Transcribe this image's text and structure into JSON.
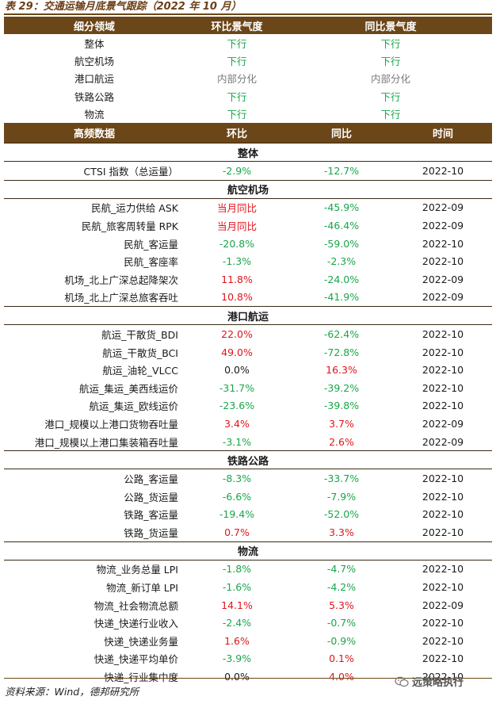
{
  "title": "表 29：交通运输月底景气跟踪（2022 年 10 月）",
  "top_table": {
    "headers": [
      "细分领域",
      "环比景气度",
      "同比景气度"
    ],
    "rows": [
      {
        "sector": "整体",
        "mom": "下行",
        "mom_color": "green",
        "yoy": "下行",
        "yoy_color": "green"
      },
      {
        "sector": "航空机场",
        "mom": "下行",
        "mom_color": "green",
        "yoy": "下行",
        "yoy_color": "green"
      },
      {
        "sector": "港口航运",
        "mom": "内部分化",
        "mom_color": "gray",
        "yoy": "内部分化",
        "yoy_color": "gray"
      },
      {
        "sector": "铁路公路",
        "mom": "下行",
        "mom_color": "green",
        "yoy": "下行",
        "yoy_color": "green"
      },
      {
        "sector": "物流",
        "mom": "下行",
        "mom_color": "green",
        "yoy": "下行",
        "yoy_color": "green"
      }
    ]
  },
  "data_table": {
    "headers": [
      "高频数据",
      "环比",
      "同比",
      "时间"
    ],
    "sections": [
      {
        "name": "整体",
        "rows": [
          {
            "item": "CTSI 指数（总运量）",
            "mom": "-2.9%",
            "mom_color": "green",
            "yoy": "-12.7%",
            "yoy_color": "green",
            "date": "2022-10"
          }
        ]
      },
      {
        "name": "航空机场",
        "rows": [
          {
            "item": "民航_运力供给 ASK",
            "mom": "当月同比",
            "mom_color": "red",
            "yoy": "-45.9%",
            "yoy_color": "green",
            "date": "2022-09"
          },
          {
            "item": "民航_旅客周转量 RPK",
            "mom": "当月同比",
            "mom_color": "red",
            "yoy": "-46.4%",
            "yoy_color": "green",
            "date": "2022-09"
          },
          {
            "item": "民航_客运量",
            "mom": "-20.8%",
            "mom_color": "green",
            "yoy": "-59.0%",
            "yoy_color": "green",
            "date": "2022-10"
          },
          {
            "item": "民航_客座率",
            "mom": "-1.3%",
            "mom_color": "green",
            "yoy": "-2.3%",
            "yoy_color": "green",
            "date": "2022-10"
          },
          {
            "item": "机场_北上广深总起降架次",
            "mom": "11.8%",
            "mom_color": "red",
            "yoy": "-24.0%",
            "yoy_color": "green",
            "date": "2022-09"
          },
          {
            "item": "机场_北上广深总旅客吞吐",
            "mom": "10.8%",
            "mom_color": "red",
            "yoy": "-41.9%",
            "yoy_color": "green",
            "date": "2022-09"
          }
        ]
      },
      {
        "name": "港口航运",
        "rows": [
          {
            "item": "航运_干散货_BDI",
            "mom": "22.0%",
            "mom_color": "red",
            "yoy": "-62.4%",
            "yoy_color": "green",
            "date": "2022-10"
          },
          {
            "item": "航运_干散货_BCI",
            "mom": "49.0%",
            "mom_color": "red",
            "yoy": "-72.8%",
            "yoy_color": "green",
            "date": "2022-10"
          },
          {
            "item": "航运_油轮_VLCC",
            "mom": "0.0%",
            "mom_color": "black",
            "yoy": "16.3%",
            "yoy_color": "red",
            "date": "2022-10"
          },
          {
            "item": "航运_集运_美西线运价",
            "mom": "-31.7%",
            "mom_color": "green",
            "yoy": "-39.2%",
            "yoy_color": "green",
            "date": "2022-10"
          },
          {
            "item": "航运_集运_欧线运价",
            "mom": "-23.6%",
            "mom_color": "green",
            "yoy": "-39.8%",
            "yoy_color": "green",
            "date": "2022-10"
          },
          {
            "item": "港口_规模以上港口货物吞吐量",
            "mom": "3.4%",
            "mom_color": "red",
            "yoy": "3.7%",
            "yoy_color": "red",
            "date": "2022-09"
          },
          {
            "item": "港口_规模以上港口集装箱吞吐量",
            "mom": "-3.1%",
            "mom_color": "green",
            "yoy": "2.6%",
            "yoy_color": "red",
            "date": "2022-09"
          }
        ]
      },
      {
        "name": "铁路公路",
        "rows": [
          {
            "item": "公路_客运量",
            "mom": "-8.3%",
            "mom_color": "green",
            "yoy": "-33.7%",
            "yoy_color": "green",
            "date": "2022-10"
          },
          {
            "item": "公路_货运量",
            "mom": "-6.6%",
            "mom_color": "green",
            "yoy": "-7.9%",
            "yoy_color": "green",
            "date": "2022-10"
          },
          {
            "item": "铁路_客运量",
            "mom": "-19.4%",
            "mom_color": "green",
            "yoy": "-52.0%",
            "yoy_color": "green",
            "date": "2022-10"
          },
          {
            "item": "铁路_货运量",
            "mom": "0.7%",
            "mom_color": "red",
            "yoy": "3.3%",
            "yoy_color": "red",
            "date": "2022-10"
          }
        ]
      },
      {
        "name": "物流",
        "rows": [
          {
            "item": "物流_业务总量 LPI",
            "mom": "-1.8%",
            "mom_color": "green",
            "yoy": "-4.7%",
            "yoy_color": "green",
            "date": "2022-10"
          },
          {
            "item": "物流_新订单 LPI",
            "mom": "-1.6%",
            "mom_color": "green",
            "yoy": "-4.2%",
            "yoy_color": "green",
            "date": "2022-10"
          },
          {
            "item": "物流_社会物流总额",
            "mom": "14.1%",
            "mom_color": "red",
            "yoy": "5.3%",
            "yoy_color": "red",
            "date": "2022-09"
          },
          {
            "item": "快递_快递行业收入",
            "mom": "-2.4%",
            "mom_color": "green",
            "yoy": "-0.7%",
            "yoy_color": "green",
            "date": "2022-10"
          },
          {
            "item": "快递_快递业务量",
            "mom": "1.6%",
            "mom_color": "red",
            "yoy": "-0.9%",
            "yoy_color": "green",
            "date": "2022-10"
          },
          {
            "item": "快递_快递平均单价",
            "mom": "-3.9%",
            "mom_color": "green",
            "yoy": "0.1%",
            "yoy_color": "red",
            "date": "2022-10"
          },
          {
            "item": "快递_行业集中度",
            "mom": "0.0%",
            "mom_color": "black",
            "yoy": "4.0%",
            "yoy_color": "red",
            "date": "2022-10"
          }
        ]
      }
    ]
  },
  "source": "资料来源：Wind，德邦研究所",
  "watermark": "远策略执行",
  "watermark_icon": "wechat-icon",
  "colors": {
    "header_bg": "#6b4618",
    "up": "#e0151b",
    "down": "#1aa64a",
    "neutral": "#7a7a7a"
  }
}
